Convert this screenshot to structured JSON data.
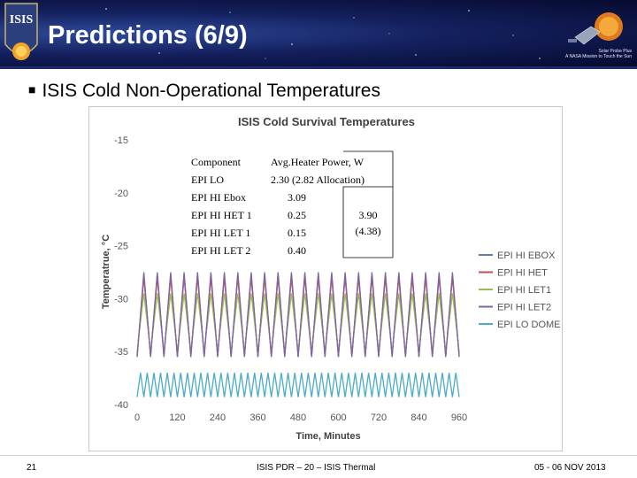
{
  "slide": {
    "title": "Predictions (6/9)",
    "bullet": "ISIS Cold Non-Operational Temperatures",
    "page_number": "21",
    "footer_center": "ISIS PDR – 20 – ISIS Thermal",
    "footer_date": "05 - 06 NOV 2013",
    "logo_left_text": "ISIS",
    "mission_line1": "Solar Probe Plus",
    "mission_line2": "A NASA Mission to Touch the Sun"
  },
  "table": {
    "headers": [
      "Component",
      "Avg.Heater Power, W"
    ],
    "rows": [
      {
        "component": "EPI LO",
        "power": "2.30 (2.82 Allocation)"
      },
      {
        "component": "EPI HI Ebox",
        "power": "3.09"
      },
      {
        "component": "EPI HI HET 1",
        "power": "0.25"
      },
      {
        "component": "EPI HI LET 1",
        "power": "0.15"
      },
      {
        "component": "EPI HI LET 2",
        "power": "0.40"
      }
    ],
    "group_total": "3.90",
    "group_allocation": "(4.38)"
  },
  "chart_data": {
    "type": "line",
    "title": "ISIS Cold Survival Temperatures",
    "xlabel": "Time, Minutes",
    "ylabel": "Temperatrue, °C",
    "xlim": [
      0,
      960
    ],
    "ylim": [
      -40,
      -15
    ],
    "x_ticks": [
      "0",
      "120",
      "240",
      "360",
      "480",
      "600",
      "720",
      "840",
      "960"
    ],
    "y_ticks": [
      "-15",
      "-20",
      "-25",
      "-30",
      "-35",
      "-40"
    ],
    "grid": false,
    "legend_position": "right",
    "series": [
      {
        "name": "EPI HI EBOX",
        "color": "#4f81bd",
        "period": 40,
        "min": -35.5,
        "max": -27.7
      },
      {
        "name": "EPI HI HET",
        "color": "#c0504d",
        "period": 40,
        "min": -35.3,
        "max": -28.0
      },
      {
        "name": "EPI HI LET1",
        "color": "#9bbb59",
        "period": 40,
        "min": -35.0,
        "max": -29.5
      },
      {
        "name": "EPI HI LET2",
        "color": "#8064a2",
        "period": 40,
        "min": -35.5,
        "max": -27.5
      },
      {
        "name": "EPI LO DOME",
        "color": "#4bacc6",
        "period": 20,
        "min": -39.3,
        "max": -37.0
      }
    ]
  }
}
